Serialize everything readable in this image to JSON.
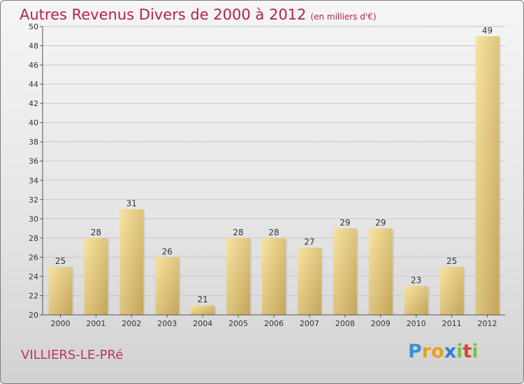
{
  "title": "Autres Revenus Divers de 2000 à 2012",
  "unit_label": "(en milliers d'€)",
  "location": "VILLIERS-LE-PRé",
  "logo": {
    "text": "Proxiti",
    "letters": [
      {
        "ch": "P",
        "color": "#3b8fd6"
      },
      {
        "ch": "r",
        "color": "#e8a020"
      },
      {
        "ch": "o",
        "color": "#e8a020"
      },
      {
        "ch": "x",
        "color": "#2b7fd0"
      },
      {
        "ch": "i",
        "color": "#7cc043"
      },
      {
        "ch": "t",
        "color": "#e0412f"
      },
      {
        "ch": "i",
        "color": "#7cc043"
      }
    ]
  },
  "colors": {
    "title": "#b52152",
    "bar_light": "#f5de96",
    "bar_dark": "#c8aa5e",
    "grid": "#c7c7c7"
  },
  "chart_data": {
    "type": "bar",
    "categories": [
      "2000",
      "2001",
      "2002",
      "2003",
      "2004",
      "2005",
      "2006",
      "2007",
      "2008",
      "2009",
      "2010",
      "2011",
      "2012"
    ],
    "values": [
      25,
      28,
      31,
      26,
      21,
      28,
      28,
      27,
      29,
      29,
      23,
      25,
      49
    ],
    "ylim": [
      20,
      50
    ],
    "yticks": [
      20,
      22,
      24,
      26,
      28,
      30,
      32,
      34,
      36,
      38,
      40,
      42,
      44,
      46,
      48,
      50
    ],
    "grid": true
  }
}
